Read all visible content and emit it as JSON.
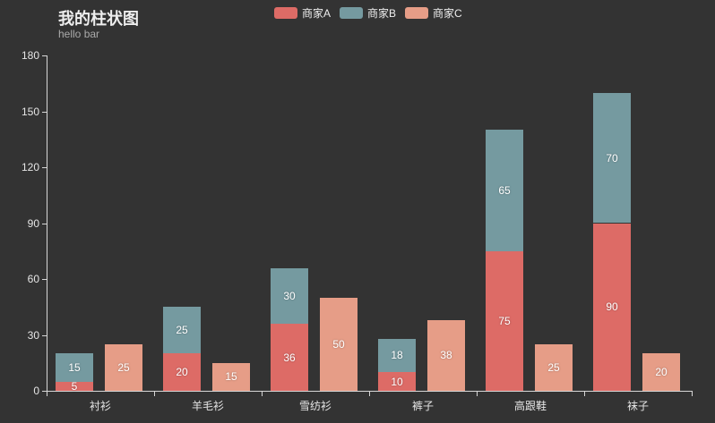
{
  "app": {
    "background_color": "#333333",
    "title_color": "#eeeeee",
    "subtitle_color": "#aaaaaa",
    "axis_color": "#d6d6d6",
    "axis_label_color": "#e6e6e6",
    "bar_label_color": "#ffffff"
  },
  "header": {
    "title": "我的柱状图",
    "subtitle": "hello bar"
  },
  "legend": {
    "items": [
      {
        "id": "vendor-a",
        "label": "商家A",
        "color": "#dd6b66"
      },
      {
        "id": "vendor-b",
        "label": "商家B",
        "color": "#759aa0"
      },
      {
        "id": "vendor-c",
        "label": "商家C",
        "color": "#e69d87"
      }
    ]
  },
  "chart_data": {
    "type": "bar",
    "title": "我的柱状图",
    "subtitle": "hello bar",
    "categories": [
      "衬衫",
      "羊毛衫",
      "雪纺衫",
      "裤子",
      "高跟鞋",
      "袜子"
    ],
    "series": [
      {
        "name": "商家A",
        "stack": "total",
        "color": "#dd6b66",
        "values": [
          5,
          20,
          36,
          10,
          75,
          90
        ]
      },
      {
        "name": "商家B",
        "stack": "total",
        "color": "#759aa0",
        "values": [
          15,
          25,
          30,
          18,
          65,
          70
        ]
      },
      {
        "name": "商家C",
        "stack": null,
        "color": "#e69d87",
        "values": [
          25,
          15,
          50,
          38,
          25,
          20
        ]
      }
    ],
    "value_labels_inside_bars": true,
    "xlabel": "",
    "ylabel": "",
    "ylim": [
      0,
      180
    ],
    "yticks": [
      0,
      30,
      60,
      90,
      120,
      150,
      180
    ],
    "grid": false,
    "legend_position": "top"
  }
}
